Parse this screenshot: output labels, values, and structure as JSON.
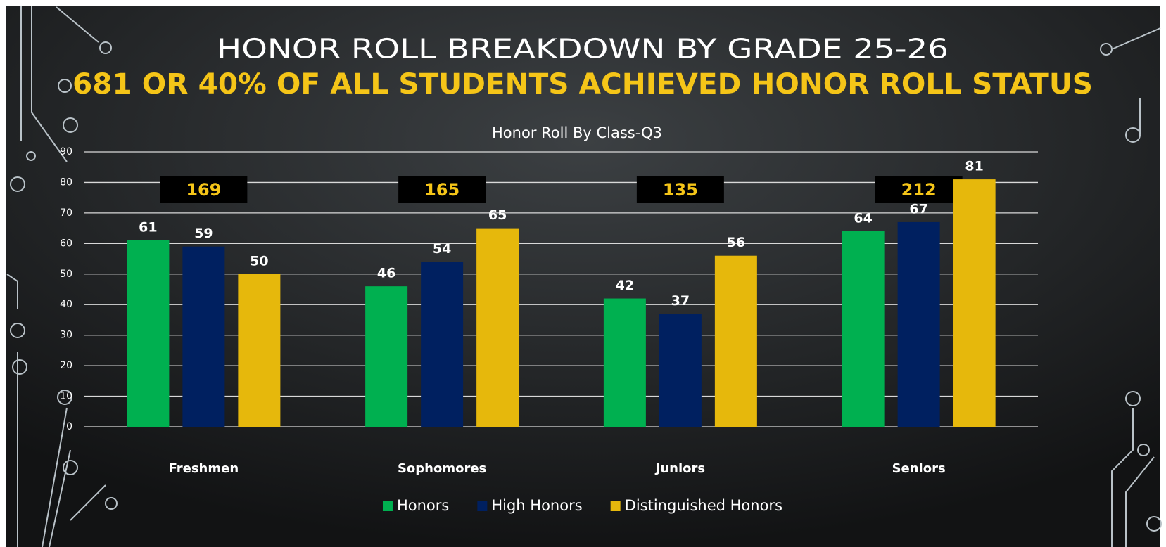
{
  "chart_data": {
    "type": "bar",
    "title": "HONOR ROLL BREAKDOWN BY GRADE 25-26",
    "subtitle": "681 OR 40% OF ALL STUDENTS ACHIEVED HONOR ROLL STATUS",
    "chart_title": "Honor Roll By Class-Q3",
    "categories": [
      "Freshmen",
      "Sophomores",
      "Juniors",
      "Seniors"
    ],
    "series": [
      {
        "name": "Honors",
        "color": "#00b050",
        "values": [
          61,
          46,
          42,
          64
        ]
      },
      {
        "name": "High Honors",
        "color": "#002060",
        "values": [
          59,
          54,
          37,
          67
        ]
      },
      {
        "name": "Distinguished Honors",
        "color": "#e6b80c",
        "values": [
          50,
          65,
          56,
          81
        ]
      }
    ],
    "totals": [
      "169",
      "165",
      "135",
      "212"
    ],
    "ylim": [
      0,
      90
    ],
    "yticks": [
      0,
      10,
      20,
      30,
      40,
      50,
      60,
      70,
      80,
      90
    ],
    "grid": true,
    "legend": "bottom"
  }
}
